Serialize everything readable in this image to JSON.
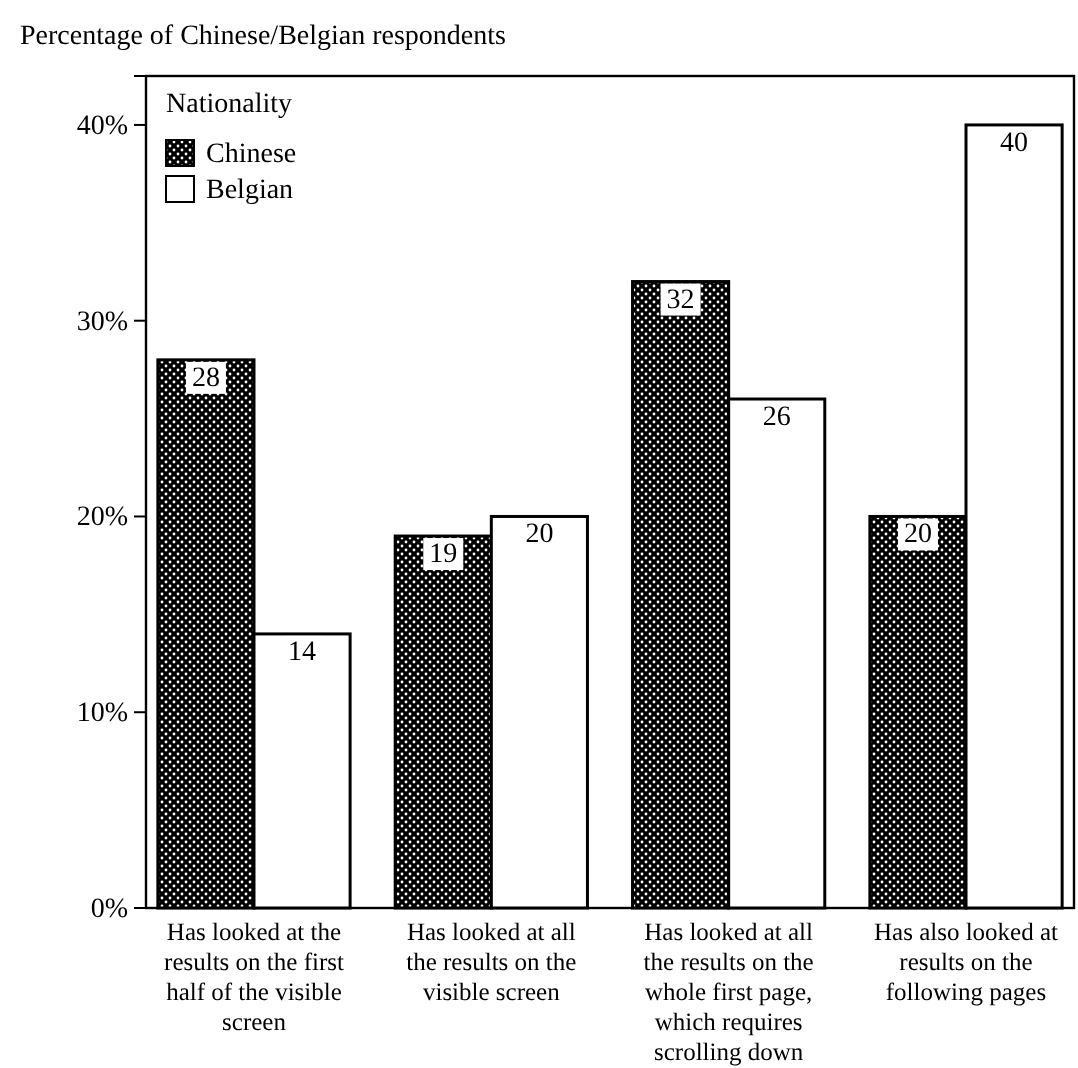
{
  "chart_data": {
    "type": "bar",
    "title": "Percentage of Chinese/Belgian respondents",
    "legend_title": "Nationality",
    "categories": [
      "Has looked at the results on the first half of the visible screen",
      "Has looked at all the results on the visible screen",
      "Has looked at all the results on the whole first page, which requires scrolling down",
      "Has also looked at results on the following pages"
    ],
    "series": [
      {
        "name": "Chinese",
        "color": "#000000",
        "values": [
          28,
          19,
          32,
          20
        ]
      },
      {
        "name": "Belgian",
        "color": "#ffffff",
        "values": [
          14,
          20,
          26,
          40
        ]
      }
    ],
    "ylim": [
      0,
      42.5
    ],
    "yticks": [
      {
        "value": 0,
        "label": "0%"
      },
      {
        "value": 10,
        "label": "10%"
      },
      {
        "value": 20,
        "label": "20%"
      },
      {
        "value": 30,
        "label": "30%"
      },
      {
        "value": 40,
        "label": "40%"
      }
    ],
    "data_labels": true,
    "legend": "top left",
    "grid": false
  }
}
